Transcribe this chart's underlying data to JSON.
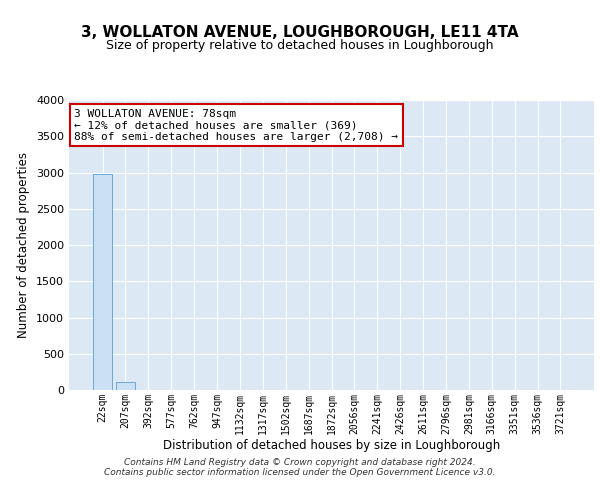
{
  "title": "3, WOLLATON AVENUE, LOUGHBOROUGH, LE11 4TA",
  "subtitle": "Size of property relative to detached houses in Loughborough",
  "xlabel": "Distribution of detached houses by size in Loughborough",
  "ylabel": "Number of detached properties",
  "categories": [
    "22sqm",
    "207sqm",
    "392sqm",
    "577sqm",
    "762sqm",
    "947sqm",
    "1132sqm",
    "1317sqm",
    "1502sqm",
    "1687sqm",
    "1872sqm",
    "2056sqm",
    "2241sqm",
    "2426sqm",
    "2611sqm",
    "2796sqm",
    "2981sqm",
    "3166sqm",
    "3351sqm",
    "3536sqm",
    "3721sqm"
  ],
  "bar_values": [
    2980,
    105,
    3,
    1,
    0,
    0,
    1,
    0,
    0,
    0,
    0,
    0,
    1,
    0,
    0,
    0,
    0,
    0,
    0,
    0,
    0
  ],
  "bar_color": "#cce0f5",
  "bar_edge_color": "#5a9fd4",
  "bg_color": "#dce9f5",
  "grid_color": "#ffffff",
  "annotation_line1": "3 WOLLATON AVENUE: 78sqm",
  "annotation_line2": "← 12% of detached houses are smaller (369)",
  "annotation_line3": "88% of semi-detached houses are larger (2,708) →",
  "annotation_box_color": "#ffffff",
  "annotation_border_color": "#cc0000",
  "ylim": [
    0,
    4000
  ],
  "yticks": [
    0,
    500,
    1000,
    1500,
    2000,
    2500,
    3000,
    3500,
    4000
  ],
  "footer_line1": "Contains HM Land Registry data © Crown copyright and database right 2024.",
  "footer_line2": "Contains public sector information licensed under the Open Government Licence v3.0.",
  "title_fontsize": 11,
  "subtitle_fontsize": 9,
  "xlabel_fontsize": 8.5,
  "ylabel_fontsize": 8.5,
  "tick_fontsize": 7,
  "footer_fontsize": 6.5,
  "annot_fontsize": 8
}
